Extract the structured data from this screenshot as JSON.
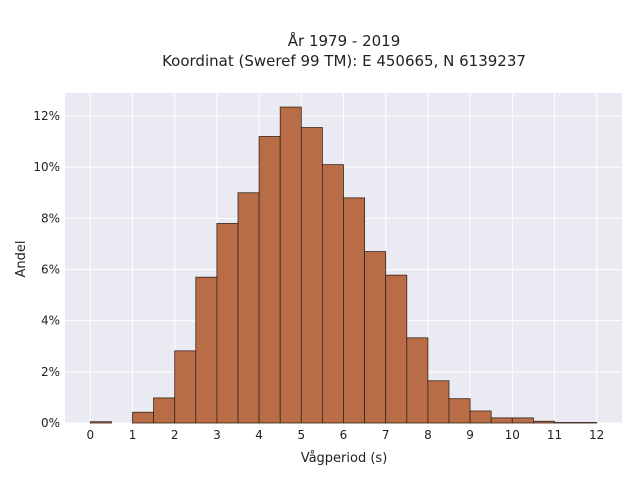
{
  "chart_data": {
    "type": "bar",
    "title_lines": [
      "År 1979 - 2019",
      "Koordinat (Sweref 99 TM): E 450665, N 6139237"
    ],
    "xlabel": "Vågperiod (s)",
    "ylabel": "Andel",
    "xlim": [
      -0.6,
      12.6
    ],
    "ylim": [
      0,
      12.9
    ],
    "x_ticks": [
      0,
      1,
      2,
      3,
      4,
      5,
      6,
      7,
      8,
      9,
      10,
      11,
      12
    ],
    "y_ticks": [
      0,
      2,
      4,
      6,
      8,
      10,
      12
    ],
    "y_tick_suffix": "%",
    "bin_width": 0.5,
    "bins": [
      {
        "x0": 0.0,
        "value": 0.05
      },
      {
        "x0": 0.5,
        "value": 0.0
      },
      {
        "x0": 1.0,
        "value": 0.42
      },
      {
        "x0": 1.5,
        "value": 0.98
      },
      {
        "x0": 2.0,
        "value": 2.82
      },
      {
        "x0": 2.5,
        "value": 5.7
      },
      {
        "x0": 3.0,
        "value": 7.8
      },
      {
        "x0": 3.5,
        "value": 9.0
      },
      {
        "x0": 4.0,
        "value": 11.2
      },
      {
        "x0": 4.5,
        "value": 12.35
      },
      {
        "x0": 5.0,
        "value": 11.55
      },
      {
        "x0": 5.5,
        "value": 10.1
      },
      {
        "x0": 6.0,
        "value": 8.8
      },
      {
        "x0": 6.5,
        "value": 6.7
      },
      {
        "x0": 7.0,
        "value": 5.78
      },
      {
        "x0": 7.5,
        "value": 3.33
      },
      {
        "x0": 8.0,
        "value": 1.65
      },
      {
        "x0": 8.5,
        "value": 0.95
      },
      {
        "x0": 9.0,
        "value": 0.47
      },
      {
        "x0": 9.5,
        "value": 0.2
      },
      {
        "x0": 10.0,
        "value": 0.2
      },
      {
        "x0": 10.5,
        "value": 0.07
      },
      {
        "x0": 11.0,
        "value": 0.02
      },
      {
        "x0": 11.5,
        "value": 0.02
      }
    ],
    "grid": true,
    "colors": {
      "bar_fill": "#b86d47",
      "bar_edge": "#3a2418",
      "plot_background": "#eaeaf2",
      "grid": "#ffffff"
    }
  }
}
